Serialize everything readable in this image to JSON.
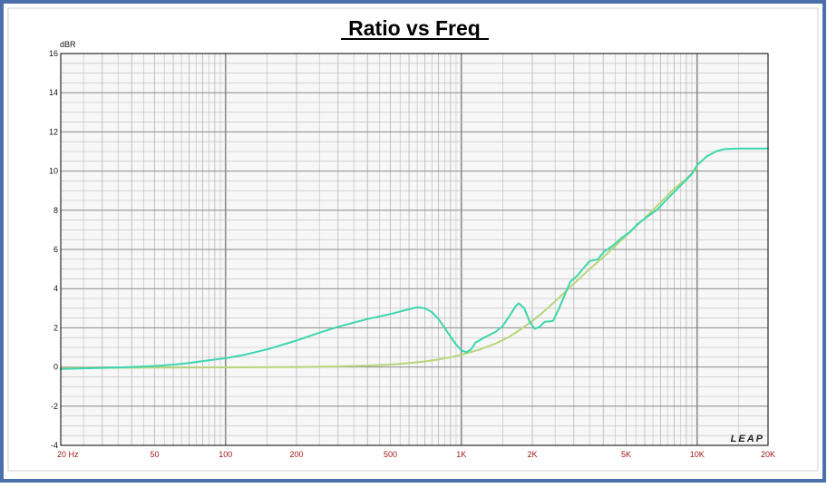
{
  "chart_data": {
    "type": "line",
    "title": "Ratio vs Freq",
    "ylabel": "dBR",
    "xscale": "log",
    "xlim": [
      20,
      20000
    ],
    "ylim": [
      -4,
      16
    ],
    "yticks": [
      -4,
      -2,
      0,
      2,
      4,
      6,
      8,
      10,
      12,
      14,
      16
    ],
    "xticks": [
      {
        "value": 20,
        "label": "20  Hz"
      },
      {
        "value": 50,
        "label": "50"
      },
      {
        "value": 100,
        "label": "100"
      },
      {
        "value": 200,
        "label": "200"
      },
      {
        "value": 500,
        "label": "500"
      },
      {
        "value": 1000,
        "label": "1K"
      },
      {
        "value": 2000,
        "label": "2K"
      },
      {
        "value": 5000,
        "label": "5K"
      },
      {
        "value": 10000,
        "label": "10K"
      },
      {
        "value": 20000,
        "label": "20K"
      }
    ],
    "grid": true,
    "watermark": "LEAP",
    "colors": {
      "frame_border": "#4b6fad",
      "plot_background": "#f7f7f7",
      "grid_minor": "#bcbcbc",
      "grid_major": "#8a8a8a",
      "tick_label_x": "#a01818",
      "tick_label_y": "#111111",
      "measured": "#3dd6ae",
      "target": "#b9d47c"
    },
    "series": [
      {
        "color_key": "target",
        "points": [
          [
            20,
            -0.05
          ],
          [
            50,
            -0.03
          ],
          [
            100,
            -0.02
          ],
          [
            200,
            0.0
          ],
          [
            300,
            0.03
          ],
          [
            400,
            0.07
          ],
          [
            500,
            0.12
          ],
          [
            600,
            0.2
          ],
          [
            700,
            0.28
          ],
          [
            800,
            0.38
          ],
          [
            900,
            0.5
          ],
          [
            1000,
            0.62
          ],
          [
            1200,
            0.9
          ],
          [
            1400,
            1.2
          ],
          [
            1600,
            1.55
          ],
          [
            1800,
            1.95
          ],
          [
            2000,
            2.35
          ],
          [
            2200,
            2.75
          ],
          [
            2500,
            3.35
          ],
          [
            3000,
            4.25
          ],
          [
            3500,
            5.0
          ],
          [
            4000,
            5.6
          ],
          [
            5000,
            6.7
          ],
          [
            6000,
            7.6
          ],
          [
            7000,
            8.4
          ],
          [
            8000,
            9.1
          ],
          [
            9000,
            9.6
          ],
          [
            10000,
            10.15
          ]
        ]
      },
      {
        "color_key": "measured",
        "points": [
          [
            20,
            -0.1
          ],
          [
            30,
            -0.05
          ],
          [
            40,
            0.0
          ],
          [
            50,
            0.05
          ],
          [
            60,
            0.12
          ],
          [
            70,
            0.2
          ],
          [
            80,
            0.3
          ],
          [
            100,
            0.45
          ],
          [
            120,
            0.62
          ],
          [
            150,
            0.9
          ],
          [
            200,
            1.35
          ],
          [
            250,
            1.75
          ],
          [
            300,
            2.05
          ],
          [
            400,
            2.45
          ],
          [
            500,
            2.7
          ],
          [
            600,
            2.95
          ],
          [
            650,
            3.05
          ],
          [
            700,
            3.0
          ],
          [
            750,
            2.8
          ],
          [
            800,
            2.45
          ],
          [
            850,
            2.0
          ],
          [
            900,
            1.55
          ],
          [
            950,
            1.15
          ],
          [
            1000,
            0.85
          ],
          [
            1050,
            0.75
          ],
          [
            1100,
            0.9
          ],
          [
            1150,
            1.25
          ],
          [
            1250,
            1.5
          ],
          [
            1400,
            1.8
          ],
          [
            1500,
            2.1
          ],
          [
            1600,
            2.6
          ],
          [
            1700,
            3.1
          ],
          [
            1750,
            3.25
          ],
          [
            1850,
            3.0
          ],
          [
            1950,
            2.3
          ],
          [
            2050,
            1.95
          ],
          [
            2150,
            2.05
          ],
          [
            2250,
            2.3
          ],
          [
            2450,
            2.35
          ],
          [
            2600,
            3.0
          ],
          [
            2750,
            3.7
          ],
          [
            2900,
            4.35
          ],
          [
            3100,
            4.65
          ],
          [
            3300,
            5.05
          ],
          [
            3500,
            5.4
          ],
          [
            3800,
            5.5
          ],
          [
            4000,
            5.85
          ],
          [
            4400,
            6.2
          ],
          [
            4800,
            6.6
          ],
          [
            5200,
            6.9
          ],
          [
            5600,
            7.3
          ],
          [
            6200,
            7.7
          ],
          [
            6800,
            8.05
          ],
          [
            7500,
            8.6
          ],
          [
            8500,
            9.25
          ],
          [
            9500,
            9.85
          ],
          [
            10000,
            10.3
          ],
          [
            11000,
            10.75
          ],
          [
            12000,
            11.0
          ],
          [
            13000,
            11.12
          ],
          [
            15000,
            11.15
          ],
          [
            20000,
            11.15
          ]
        ]
      }
    ]
  }
}
